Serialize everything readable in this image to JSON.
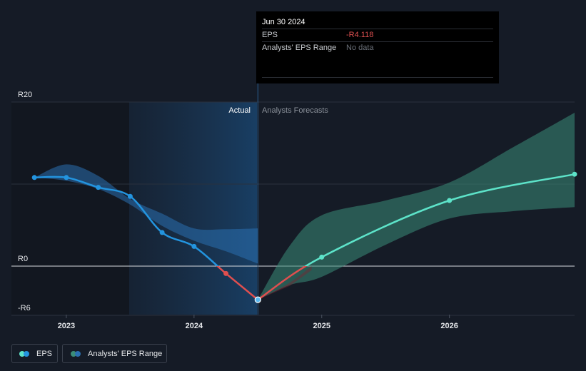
{
  "tooltip": {
    "date": "Jun 30 2024",
    "eps_label": "EPS",
    "eps_value": "-R4.118",
    "range_label": "Analysts' EPS Range",
    "range_value": "No data"
  },
  "labels": {
    "actual": "Actual",
    "forecast": "Analysts Forecasts"
  },
  "legend": {
    "eps": "EPS",
    "range": "Analysts' EPS Range"
  },
  "colors": {
    "background": "#151b26",
    "eps_actual": "#2394df",
    "eps_negative": "#e04f4f",
    "eps_forecast": "#5de3c9",
    "range_actual": "#2a6fb0",
    "range_forecast": "#3b8c78"
  },
  "chart_data": {
    "type": "line",
    "y_ticks": [
      {
        "value": 20,
        "label": "R20"
      },
      {
        "value": 0,
        "label": "R0"
      },
      {
        "value": -6,
        "label": "-R6"
      }
    ],
    "x_ticks": [
      {
        "value": 2023,
        "label": "2023"
      },
      {
        "value": 2024,
        "label": "2024"
      },
      {
        "value": 2025,
        "label": "2025"
      },
      {
        "value": 2026,
        "label": "2026"
      }
    ],
    "xlim": [
      2022.57,
      2026.98
    ],
    "ylim": [
      -6,
      20
    ],
    "actual_end": 2024.5,
    "series": [
      {
        "key": "actual",
        "points": [
          [
            2022.75,
            10.8
          ],
          [
            2023.0,
            10.8
          ],
          [
            2023.25,
            9.6
          ],
          [
            2023.5,
            8.5
          ],
          [
            2023.75,
            4.1
          ],
          [
            2024.0,
            2.4
          ],
          [
            2024.25,
            -0.9
          ],
          [
            2024.5,
            -4.1
          ]
        ]
      },
      {
        "key": "forecast",
        "points": [
          [
            2024.5,
            -4.1
          ],
          [
            2025.0,
            1.1
          ],
          [
            2026.0,
            8.0
          ],
          [
            2026.98,
            11.2
          ]
        ]
      }
    ],
    "range_actual": {
      "upper": [
        [
          2022.75,
          10.8
        ],
        [
          2023.0,
          12.4
        ],
        [
          2023.25,
          11.0
        ],
        [
          2023.5,
          8.2
        ],
        [
          2023.75,
          6.4
        ],
        [
          2024.0,
          4.6
        ],
        [
          2024.25,
          4.5
        ],
        [
          2024.5,
          4.6
        ]
      ],
      "lower": [
        [
          2022.75,
          10.8
        ],
        [
          2023.0,
          10.4
        ],
        [
          2023.25,
          9.4
        ],
        [
          2023.5,
          7.5
        ],
        [
          2023.75,
          4.9
        ],
        [
          2024.0,
          3.1
        ],
        [
          2024.25,
          1.8
        ],
        [
          2024.5,
          0.3
        ]
      ]
    },
    "range_forecast": {
      "upper": [
        [
          2024.5,
          -4.1
        ],
        [
          2024.75,
          2.5
        ],
        [
          2025.0,
          6.2
        ],
        [
          2025.5,
          8.0
        ],
        [
          2026.0,
          10.2
        ],
        [
          2026.5,
          14.5
        ],
        [
          2026.98,
          18.7
        ]
      ],
      "lower": [
        [
          2024.5,
          -4.1
        ],
        [
          2024.75,
          -2.3
        ],
        [
          2025.0,
          -1.3
        ],
        [
          2025.5,
          2.6
        ],
        [
          2026.0,
          5.8
        ],
        [
          2026.5,
          6.7
        ],
        [
          2026.98,
          7.2
        ]
      ]
    }
  }
}
